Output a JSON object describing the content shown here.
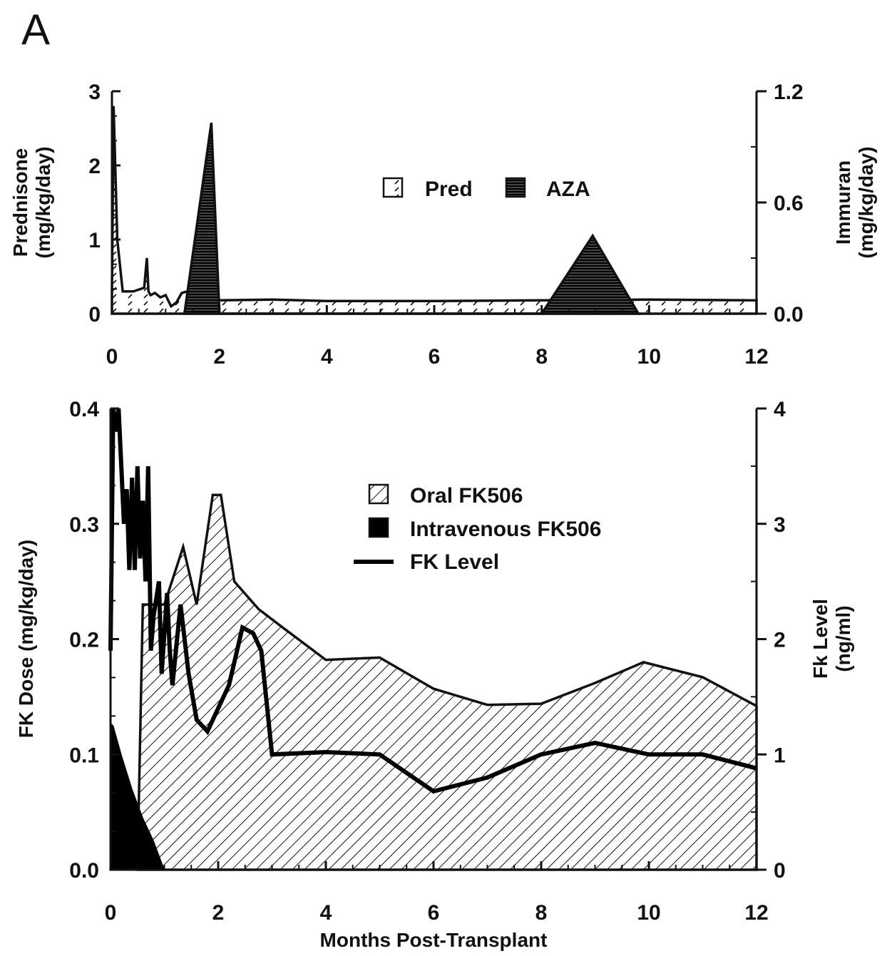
{
  "panel_label": "A",
  "chart_data": [
    {
      "type": "area",
      "panel": "top",
      "xlim": [
        0,
        12
      ],
      "x_ticks": [
        "0",
        "2",
        "4",
        "6",
        "8",
        "10",
        "12"
      ],
      "ylabel_left": [
        "Prednisone",
        "(mg/kg/day)"
      ],
      "ylim_left": [
        0,
        3
      ],
      "y_ticks_left": [
        "0",
        "1",
        "2",
        "3"
      ],
      "ylabel_right": [
        "Immuran",
        "(mg/kg/day)"
      ],
      "ylim_right": [
        0,
        1.2
      ],
      "y_ticks_right": [
        "0.0",
        "0.6",
        "1.2"
      ],
      "legend": {
        "placement": "top-center",
        "items": [
          "Pred",
          "AZA"
        ]
      },
      "series": [
        {
          "name": "Pred",
          "axis": "left",
          "fill": "dashed-hatch",
          "x": [
            0,
            0.03,
            0.1,
            0.2,
            0.4,
            0.6,
            0.65,
            0.68,
            0.72,
            0.8,
            0.9,
            1.0,
            1.1,
            1.2,
            1.3,
            1.4,
            2.0,
            3.0,
            4.0,
            6.0,
            8.0,
            10.0,
            12.0
          ],
          "y": [
            0.3,
            2.8,
            1.0,
            0.3,
            0.3,
            0.35,
            0.75,
            0.3,
            0.25,
            0.28,
            0.22,
            0.25,
            0.1,
            0.15,
            0.28,
            0.3,
            0.18,
            0.19,
            0.17,
            0.17,
            0.18,
            0.19,
            0.18
          ]
        },
        {
          "name": "AZA",
          "axis": "right",
          "fill": "horizontal-lines",
          "x": [
            1.35,
            1.85,
            2.0,
            8.0,
            8.95,
            9.8
          ],
          "y": [
            0.0,
            1.03,
            0.0,
            0.0,
            0.42,
            0.0
          ]
        }
      ]
    },
    {
      "type": "area",
      "panel": "bottom",
      "xlabel": "Months Post-Transplant",
      "xlim": [
        0,
        12
      ],
      "x_ticks": [
        "0",
        "2",
        "4",
        "6",
        "8",
        "10",
        "12"
      ],
      "ylabel_left": "FK Dose (mg/kg/day)",
      "ylim_left": [
        0,
        0.4
      ],
      "y_ticks_left": [
        "0.0",
        "0.1",
        "0.2",
        "0.3",
        "0.4"
      ],
      "ylabel_right": [
        "Fk Level",
        "(ng/ml)"
      ],
      "ylim_right": [
        0,
        4
      ],
      "y_ticks_right": [
        "0",
        "1",
        "2",
        "3",
        "4"
      ],
      "legend": {
        "placement": "top-center",
        "items": [
          "Oral FK506",
          "Intravenous FK506",
          "FK Level"
        ]
      },
      "series": [
        {
          "name": "Oral FK506",
          "axis": "left",
          "fill": "diagonal-hatch",
          "x": [
            0.5,
            0.6,
            1.0,
            1.35,
            1.6,
            1.9,
            2.05,
            2.3,
            2.75,
            3.2,
            4.0,
            5.0,
            6.0,
            7.0,
            8.0,
            9.0,
            9.9,
            11.0,
            12.0
          ],
          "y": [
            0.0,
            0.23,
            0.23,
            0.28,
            0.23,
            0.325,
            0.325,
            0.25,
            0.226,
            0.21,
            0.182,
            0.184,
            0.157,
            0.143,
            0.144,
            0.162,
            0.18,
            0.167,
            0.142
          ]
        },
        {
          "name": "Intravenous FK506",
          "axis": "left",
          "fill": "solid",
          "x": [
            0,
            0.05,
            0.2,
            0.4,
            0.6,
            0.8,
            1.0
          ],
          "y": [
            0.127,
            0.125,
            0.1,
            0.07,
            0.045,
            0.025,
            0.0
          ]
        },
        {
          "name": "FK Level",
          "axis": "right",
          "line": "thick",
          "x": [
            0.0,
            0.05,
            0.1,
            0.15,
            0.2,
            0.25,
            0.3,
            0.35,
            0.4,
            0.45,
            0.5,
            0.55,
            0.6,
            0.65,
            0.7,
            0.75,
            0.8,
            0.9,
            0.95,
            1.05,
            1.1,
            1.15,
            1.3,
            1.45,
            1.6,
            1.8,
            2.0,
            2.2,
            2.45,
            2.65,
            2.8,
            3.0,
            4.0,
            5.0,
            6.0,
            7.0,
            8.0,
            9.0,
            10.0,
            11.0,
            12.0
          ],
          "y": [
            1.9,
            4.0,
            3.8,
            4.0,
            3.5,
            3.0,
            3.3,
            2.6,
            3.4,
            2.6,
            3.5,
            2.7,
            3.2,
            2.5,
            3.5,
            1.9,
            2.2,
            2.5,
            1.7,
            2.4,
            1.9,
            1.6,
            2.3,
            1.7,
            1.3,
            1.2,
            1.4,
            1.6,
            2.1,
            2.05,
            1.9,
            1.0,
            1.02,
            1.0,
            0.68,
            0.8,
            1.0,
            1.1,
            1.0,
            1.0,
            0.88
          ]
        }
      ]
    }
  ]
}
